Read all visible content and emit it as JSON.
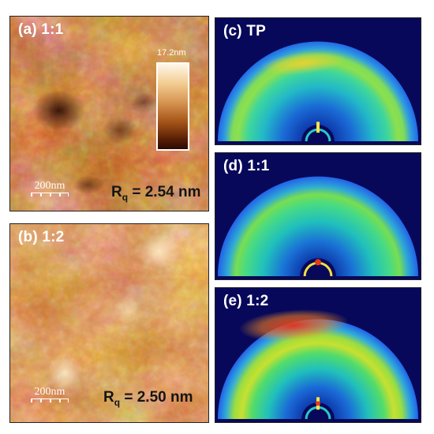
{
  "panels": {
    "a": {
      "label": "(a) 1:1",
      "rq_prefix": "R",
      "rq_sub": "q",
      "rq_value": " = 2.54 nm",
      "scalebar": "200nm",
      "colorbar_max": "17.2nm"
    },
    "b": {
      "label": "(b) 1:2",
      "rq_prefix": "R",
      "rq_sub": "q",
      "rq_value": " = 2.50 nm",
      "scalebar": "200nm"
    },
    "c": {
      "label": "(c) TP"
    },
    "d": {
      "label": "(d) 1:1"
    },
    "e": {
      "label": "(e) 1:2"
    }
  },
  "colors": {
    "afm_dark": "#3a1205",
    "afm_mid": "#b5621f",
    "afm_light": "#f6d4a0",
    "giwaxs_bg": "#0a0a6e",
    "giwaxs_ring_outer": "#1e6ad8",
    "giwaxs_mid": "#22c3b4",
    "giwaxs_green": "#4fd84a",
    "giwaxs_high": "#e83a1e"
  }
}
